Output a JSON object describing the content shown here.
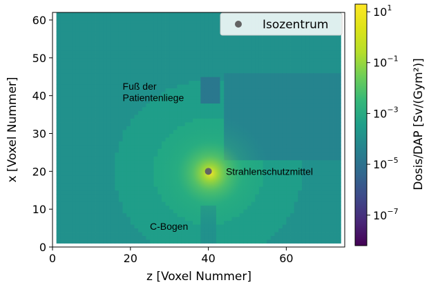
{
  "chart_data": {
    "type": "heatmap",
    "title": "",
    "xlabel": "z [Voxel Nummer]",
    "ylabel": "x [Voxel Nummer]",
    "xlim": [
      0,
      75
    ],
    "ylim": [
      0,
      62
    ],
    "xticks": [
      0,
      20,
      40,
      60
    ],
    "yticks": [
      0,
      10,
      20,
      30,
      40,
      50,
      60
    ],
    "colorbar": {
      "label": "Dosis/DAP [Sv/(Gym²)]",
      "scale": "log",
      "colormap": "viridis",
      "min_exp": -8.2,
      "max_exp": 1.3,
      "ticks": [
        {
          "base": "10",
          "exp": "1",
          "value": 10
        },
        {
          "base": "10",
          "exp": "−1",
          "value": 0.1
        },
        {
          "base": "10",
          "exp": "−3",
          "value": 0.001
        },
        {
          "base": "10",
          "exp": "−5",
          "value": 1e-05
        },
        {
          "base": "10",
          "exp": "−7",
          "value": 1e-07
        }
      ]
    },
    "isocenter": {
      "z": 40,
      "x": 20
    },
    "legend": {
      "entries": [
        "Isozentrum"
      ],
      "placement": "top-right"
    },
    "annotations": [
      {
        "id": "fuss1",
        "text": "Fuß der",
        "z": 18,
        "x": 42.5
      },
      {
        "id": "fuss2",
        "text": "Patientenliege",
        "z": 18,
        "x": 39.5
      },
      {
        "id": "strahl",
        "text": "Strahlenschutzmittel",
        "z": 44.5,
        "x": 20
      },
      {
        "id": "cbogen",
        "text": "C-Bogen",
        "z": 25,
        "x": 5.5
      }
    ]
  }
}
